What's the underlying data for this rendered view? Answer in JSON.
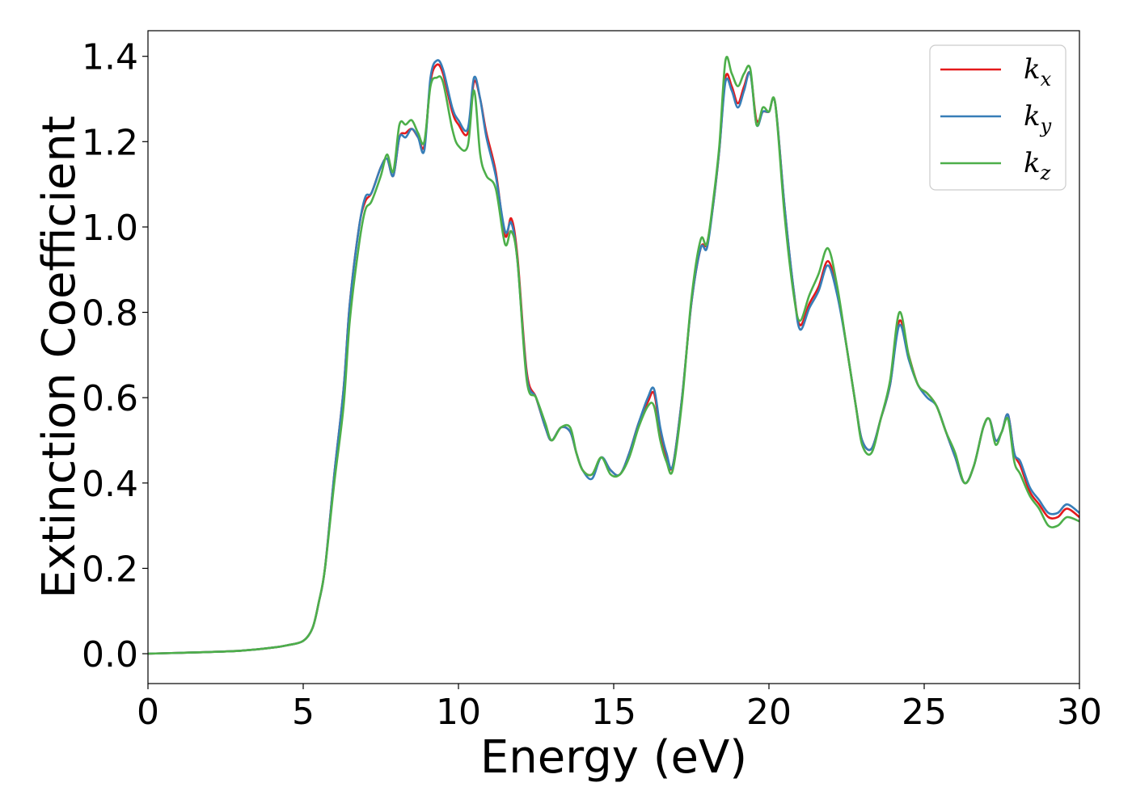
{
  "chart_data": {
    "type": "line",
    "xlabel": "Energy (eV)",
    "ylabel": "Extinction Coefficient",
    "xlim": [
      0,
      30
    ],
    "ylim": [
      -0.07,
      1.46
    ],
    "xticks": [
      0,
      5,
      10,
      15,
      20,
      25,
      30
    ],
    "yticks": [
      0.0,
      0.2,
      0.4,
      0.6,
      0.8,
      1.0,
      1.2,
      1.4
    ],
    "xtick_labels": [
      "0",
      "5",
      "10",
      "15",
      "20",
      "25",
      "30"
    ],
    "ytick_labels": [
      "0.0",
      "0.2",
      "0.4",
      "0.6",
      "0.8",
      "1.0",
      "1.2",
      "1.4"
    ],
    "grid": false,
    "legend_position": "top-right",
    "x": [
      0,
      1,
      2,
      3,
      4,
      4.5,
      5,
      5.3,
      5.5,
      5.7,
      6,
      6.3,
      6.5,
      6.8,
      7,
      7.2,
      7.5,
      7.7,
      7.9,
      8.1,
      8.3,
      8.5,
      8.7,
      8.9,
      9.1,
      9.3,
      9.5,
      9.8,
      10,
      10.3,
      10.5,
      10.7,
      10.9,
      11.2,
      11.5,
      11.7,
      11.9,
      12.2,
      12.5,
      12.8,
      13,
      13.3,
      13.6,
      13.8,
      14,
      14.3,
      14.6,
      14.9,
      15.2,
      15.5,
      15.8,
      16.1,
      16.3,
      16.5,
      16.7,
      16.9,
      17.2,
      17.5,
      17.8,
      18,
      18.2,
      18.4,
      18.6,
      18.8,
      19,
      19.2,
      19.4,
      19.6,
      19.8,
      20,
      20.2,
      20.5,
      20.8,
      21,
      21.3,
      21.6,
      21.9,
      22.2,
      22.5,
      22.8,
      23,
      23.3,
      23.6,
      23.9,
      24.2,
      24.5,
      24.8,
      25.1,
      25.4,
      25.7,
      26,
      26.3,
      26.6,
      26.9,
      27.1,
      27.3,
      27.5,
      27.7,
      27.9,
      28.1,
      28.4,
      28.7,
      29,
      29.3,
      29.6,
      30
    ],
    "series": [
      {
        "name": "kx",
        "color": "#e41a1c",
        "values": [
          0.0,
          0.002,
          0.004,
          0.007,
          0.014,
          0.02,
          0.03,
          0.06,
          0.12,
          0.2,
          0.42,
          0.62,
          0.82,
          1.0,
          1.06,
          1.08,
          1.14,
          1.16,
          1.12,
          1.21,
          1.22,
          1.23,
          1.21,
          1.19,
          1.34,
          1.38,
          1.36,
          1.27,
          1.24,
          1.22,
          1.34,
          1.3,
          1.22,
          1.13,
          0.98,
          1.02,
          0.93,
          0.66,
          0.6,
          0.53,
          0.5,
          0.53,
          0.52,
          0.47,
          0.43,
          0.42,
          0.46,
          0.43,
          0.42,
          0.47,
          0.54,
          0.59,
          0.61,
          0.52,
          0.46,
          0.44,
          0.6,
          0.82,
          0.95,
          0.96,
          1.05,
          1.18,
          1.35,
          1.33,
          1.29,
          1.33,
          1.36,
          1.25,
          1.27,
          1.27,
          1.29,
          1.05,
          0.85,
          0.77,
          0.82,
          0.86,
          0.92,
          0.85,
          0.72,
          0.58,
          0.5,
          0.48,
          0.55,
          0.63,
          0.78,
          0.7,
          0.63,
          0.61,
          0.58,
          0.52,
          0.46,
          0.4,
          0.44,
          0.53,
          0.55,
          0.5,
          0.52,
          0.56,
          0.47,
          0.44,
          0.38,
          0.35,
          0.32,
          0.32,
          0.34,
          0.32
        ]
      },
      {
        "name": "ky",
        "color": "#377eb8",
        "values": [
          0.0,
          0.002,
          0.004,
          0.007,
          0.014,
          0.02,
          0.03,
          0.06,
          0.12,
          0.2,
          0.42,
          0.62,
          0.82,
          1.0,
          1.07,
          1.08,
          1.14,
          1.16,
          1.12,
          1.21,
          1.21,
          1.23,
          1.21,
          1.18,
          1.35,
          1.39,
          1.37,
          1.28,
          1.25,
          1.23,
          1.35,
          1.3,
          1.21,
          1.12,
          0.99,
          1.01,
          0.92,
          0.65,
          0.6,
          0.53,
          0.5,
          0.53,
          0.52,
          0.47,
          0.43,
          0.41,
          0.46,
          0.43,
          0.42,
          0.47,
          0.54,
          0.6,
          0.62,
          0.53,
          0.47,
          0.44,
          0.6,
          0.82,
          0.95,
          0.95,
          1.05,
          1.18,
          1.34,
          1.32,
          1.28,
          1.32,
          1.36,
          1.24,
          1.27,
          1.27,
          1.29,
          1.05,
          0.85,
          0.76,
          0.81,
          0.85,
          0.91,
          0.84,
          0.72,
          0.58,
          0.5,
          0.48,
          0.55,
          0.63,
          0.77,
          0.69,
          0.63,
          0.6,
          0.58,
          0.52,
          0.46,
          0.4,
          0.44,
          0.53,
          0.55,
          0.5,
          0.52,
          0.56,
          0.47,
          0.45,
          0.39,
          0.36,
          0.33,
          0.33,
          0.35,
          0.33
        ]
      },
      {
        "name": "kz",
        "color": "#4daf4a",
        "values": [
          0.0,
          0.002,
          0.004,
          0.007,
          0.014,
          0.02,
          0.03,
          0.06,
          0.12,
          0.2,
          0.4,
          0.58,
          0.78,
          0.96,
          1.04,
          1.06,
          1.12,
          1.17,
          1.13,
          1.24,
          1.24,
          1.25,
          1.22,
          1.2,
          1.33,
          1.35,
          1.34,
          1.23,
          1.19,
          1.19,
          1.32,
          1.17,
          1.12,
          1.09,
          0.96,
          0.99,
          0.92,
          0.64,
          0.6,
          0.54,
          0.5,
          0.53,
          0.53,
          0.47,
          0.43,
          0.42,
          0.46,
          0.42,
          0.42,
          0.46,
          0.53,
          0.58,
          0.58,
          0.5,
          0.45,
          0.43,
          0.59,
          0.83,
          0.97,
          0.96,
          1.06,
          1.19,
          1.39,
          1.36,
          1.33,
          1.36,
          1.37,
          1.24,
          1.28,
          1.27,
          1.29,
          1.03,
          0.84,
          0.78,
          0.84,
          0.89,
          0.95,
          0.86,
          0.72,
          0.58,
          0.49,
          0.47,
          0.55,
          0.64,
          0.8,
          0.7,
          0.63,
          0.61,
          0.58,
          0.52,
          0.47,
          0.4,
          0.44,
          0.53,
          0.55,
          0.49,
          0.52,
          0.55,
          0.45,
          0.42,
          0.37,
          0.34,
          0.3,
          0.3,
          0.32,
          0.31
        ]
      }
    ]
  }
}
